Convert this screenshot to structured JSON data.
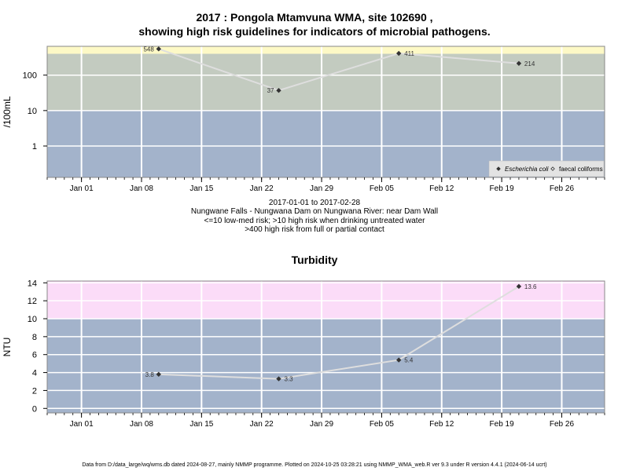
{
  "colors": {
    "low_band": "#a3b3cb",
    "mid_band": "#c3cbc0",
    "high_band_ecoli": "#fdf9c6",
    "high_band_turb": "#fbdcf8",
    "line": "#dedede",
    "grid": "#ffffff",
    "marker": "#333333"
  },
  "chart_data": [
    {
      "type": "line",
      "title": "2017 : Pongola Mtamvuna WMA, site 102690 ,",
      "subtitle": "showing high risk guidelines for indicators of microbial pathogens.",
      "ylabel": "/100mL",
      "yscale": "log",
      "ylim": [
        0.13,
        650
      ],
      "yticks": [
        1,
        10,
        100
      ],
      "yticklabels": [
        "1",
        "10",
        "100"
      ],
      "xlim": [
        "2016-12-28",
        "2017-03-03"
      ],
      "xticks": [
        "2017-01-01",
        "2017-01-08",
        "2017-01-15",
        "2017-01-22",
        "2017-01-29",
        "2017-02-05",
        "2017-02-12",
        "2017-02-19",
        "2017-02-26"
      ],
      "xticklabels": [
        "Jan 01",
        "Jan 08",
        "Jan 15",
        "Jan 22",
        "Jan 29",
        "Feb 05",
        "Feb 12",
        "Feb 19",
        "Feb 26"
      ],
      "bands": [
        {
          "from": 0.13,
          "to": 10,
          "color": "#a3b3cb"
        },
        {
          "from": 10,
          "to": 400,
          "color": "#c3cbc0"
        },
        {
          "from": 400,
          "to": 650,
          "color": "#fdf9c6"
        }
      ],
      "grid": true,
      "legend_position": "bottom-right",
      "legend": [
        {
          "label": "Escherichia coli",
          "marker": "filled-diamond",
          "italic": true
        },
        {
          "label": "faecal coliforms",
          "marker": "open-diamond",
          "italic": false
        }
      ],
      "series": [
        {
          "name": "Escherichia coli",
          "x": [
            "2017-01-10",
            "2017-01-24",
            "2017-02-07",
            "2017-02-21"
          ],
          "y": [
            548,
            37,
            411,
            214
          ],
          "labels": [
            "548",
            "37",
            "411",
            "214"
          ]
        }
      ],
      "below_text": [
        "2017-01-01 to 2017-02-28",
        "Nungwane Falls - Nungwana Dam on Nungwana River: near Dam Wall",
        "<=10 low-med risk; >10 high risk when drinking untreated water",
        ">400 high risk from full or partial contact"
      ]
    },
    {
      "type": "line",
      "title": "Turbidity",
      "ylabel": "NTU",
      "yscale": "linear",
      "ylim": [
        -0.5,
        14.2
      ],
      "yticks": [
        0,
        2,
        4,
        6,
        8,
        10,
        12,
        14
      ],
      "yticklabels": [
        "0",
        "2",
        "4",
        "6",
        "8",
        "10",
        "12",
        "14"
      ],
      "xlim": [
        "2016-12-28",
        "2017-03-03"
      ],
      "xticks": [
        "2017-01-01",
        "2017-01-08",
        "2017-01-15",
        "2017-01-22",
        "2017-01-29",
        "2017-02-05",
        "2017-02-12",
        "2017-02-19",
        "2017-02-26"
      ],
      "xticklabels": [
        "Jan 01",
        "Jan 08",
        "Jan 15",
        "Jan 22",
        "Jan 29",
        "Feb 05",
        "Feb 12",
        "Feb 19",
        "Feb 26"
      ],
      "bands": [
        {
          "from": -0.5,
          "to": 10,
          "color": "#a3b3cb"
        },
        {
          "from": 10,
          "to": 14.2,
          "color": "#fbdcf8"
        }
      ],
      "grid": true,
      "series": [
        {
          "name": "",
          "x": [
            "2017-01-10",
            "2017-01-24",
            "2017-02-07",
            "2017-02-21"
          ],
          "y": [
            3.8,
            3.3,
            5.4,
            13.6
          ],
          "labels": [
            "3.8",
            "3.3",
            "5.4",
            "13.6"
          ],
          "label_side": [
            "left",
            "right",
            "right",
            "right"
          ]
        }
      ]
    }
  ],
  "footer": "Data from D:/data_large/wq/wms.db dated 2024-08-27, mainly NMMP programme. Plotted on 2024-10-25 03:28:21 using NMMP_WMA_web.R ver 9.3 under R version 4.4.1 (2024-06-14 ucrt)"
}
